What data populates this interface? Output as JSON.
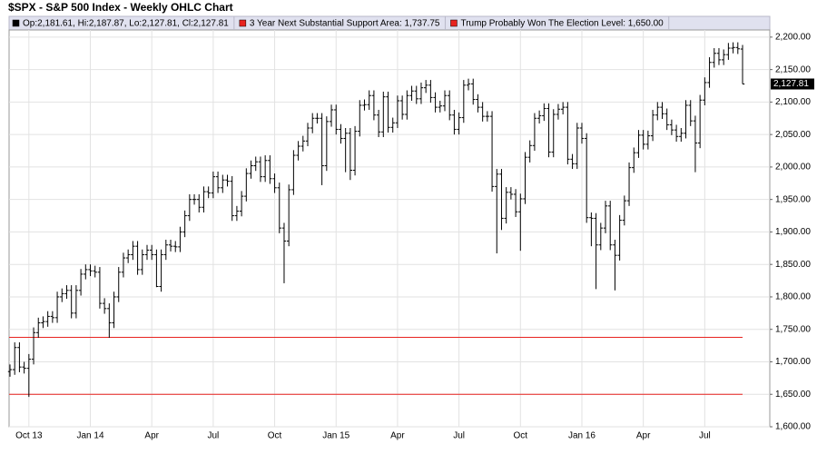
{
  "chart_data": {
    "type": "ohlc",
    "title": "$SPX - S&P 500 Index - Weekly OHLC Chart",
    "categories": [
      null,
      null,
      null,
      null,
      "Oct 13",
      null,
      null,
      null,
      null,
      null,
      null,
      null,
      null,
      null,
      null,
      null,
      null,
      "Jan 14",
      null,
      null,
      null,
      null,
      null,
      null,
      null,
      null,
      null,
      null,
      null,
      null,
      "Apr",
      null,
      null,
      null,
      null,
      null,
      null,
      null,
      null,
      null,
      null,
      null,
      null,
      "Jul",
      null,
      null,
      null,
      null,
      null,
      null,
      null,
      null,
      null,
      null,
      null,
      null,
      "Oct",
      null,
      null,
      null,
      null,
      null,
      null,
      null,
      null,
      null,
      null,
      null,
      null,
      "Jan 15",
      null,
      null,
      null,
      null,
      null,
      null,
      null,
      null,
      null,
      null,
      null,
      null,
      "Apr",
      null,
      null,
      null,
      null,
      null,
      null,
      null,
      null,
      null,
      null,
      null,
      null,
      "Jul",
      null,
      null,
      null,
      null,
      null,
      null,
      null,
      null,
      null,
      null,
      null,
      null,
      "Oct",
      null,
      null,
      null,
      null,
      null,
      null,
      null,
      null,
      null,
      null,
      null,
      null,
      "Jan 16",
      null,
      null,
      null,
      null,
      null,
      null,
      null,
      null,
      null,
      null,
      null,
      null,
      "Apr",
      null,
      null,
      null,
      null,
      null,
      null,
      null,
      null,
      null,
      null,
      null,
      null,
      "Jul",
      null,
      null,
      null,
      null,
      null,
      null,
      null,
      null
    ],
    "series": [
      {
        "name": "Op:2,181.61, Hi:2,187.87, Lo:2,127.81, Cl:2,127.81",
        "color": "#000000",
        "open": [
          1685,
          1688,
          1722,
          1692,
          1690,
          1704,
          1745,
          1760,
          1762,
          1770,
          1768,
          1800,
          1805,
          1810,
          1775,
          1810,
          1835,
          1842,
          1840,
          1838,
          1790,
          1782,
          1760,
          1800,
          1838,
          1860,
          1865,
          1878,
          1842,
          1865,
          1872,
          1865,
          1816,
          1865,
          1880,
          1878,
          1877,
          1900,
          1925,
          1950,
          1950,
          1938,
          1962,
          1960,
          1985,
          1968,
          1980,
          1978,
          1925,
          1932,
          1955,
          1990,
          2002,
          2008,
          1985,
          2010,
          1982,
          1968,
          1906,
          1886,
          1965,
          2018,
          2032,
          2040,
          2060,
          2075,
          2075,
          2002,
          2070,
          2088,
          2058,
          2044,
          2052,
          1995,
          2055,
          2095,
          2096,
          2110,
          2080,
          2054,
          2108,
          2061,
          2068,
          2102,
          2081,
          2110,
          2117,
          2105,
          2122,
          2126,
          2107,
          2092,
          2094,
          2110,
          2080,
          2058,
          2076,
          2126,
          2128,
          2104,
          2092,
          2078,
          2078,
          1970,
          1989,
          1921,
          1961,
          1958,
          1931,
          1951,
          2015,
          2033,
          2075,
          2079,
          2090,
          2023,
          2081,
          2089,
          2092,
          2012,
          2005,
          2060,
          2044,
          1922,
          1921,
          1880,
          1906,
          1940,
          1880,
          1864,
          1918,
          1948,
          1999,
          2022,
          2049,
          2035,
          2048,
          2080,
          2092,
          2082,
          2065,
          2057,
          2047,
          2052,
          2095,
          2071,
          2037,
          2103,
          2130,
          2161,
          2175,
          2165,
          2173,
          2183,
          2184,
          2181.61
        ],
        "high": [
          1696,
          1730,
          1730,
          1700,
          1712,
          1753,
          1768,
          1770,
          1778,
          1778,
          1808,
          1813,
          1818,
          1818,
          1818,
          1843,
          1850,
          1850,
          1848,
          1846,
          1798,
          1790,
          1808,
          1846,
          1868,
          1873,
          1886,
          1886,
          1873,
          1880,
          1880,
          1873,
          1873,
          1888,
          1888,
          1886,
          1908,
          1933,
          1958,
          1958,
          1958,
          1970,
          1970,
          1993,
          1993,
          1988,
          1988,
          1986,
          1940,
          1963,
          1998,
          2010,
          2016,
          2016,
          2018,
          2018,
          1990,
          1976,
          1914,
          1973,
          2026,
          2040,
          2048,
          2068,
          2083,
          2083,
          2083,
          2078,
          2096,
          2096,
          2066,
          2060,
          2060,
          2063,
          2103,
          2104,
          2118,
          2118,
          2088,
          2116,
          2116,
          2076,
          2110,
          2110,
          2118,
          2125,
          2125,
          2130,
          2134,
          2134,
          2115,
          2102,
          2118,
          2118,
          2088,
          2084,
          2134,
          2136,
          2136,
          2112,
          2100,
          2086,
          2086,
          1997,
          1997,
          1969,
          1969,
          1966,
          1959,
          2023,
          2041,
          2083,
          2087,
          2098,
          2098,
          2089,
          2097,
          2100,
          2100,
          2020,
          2068,
          2068,
          2052,
          1930,
          1929,
          1914,
          1948,
          1948,
          1888,
          1926,
          1956,
          2007,
          2030,
          2057,
          2057,
          2056,
          2088,
          2100,
          2100,
          2090,
          2073,
          2065,
          2060,
          2103,
          2103,
          2079,
          2111,
          2138,
          2169,
          2183,
          2183,
          2181,
          2191,
          2192,
          2192,
          2187.87
        ],
        "low": [
          1677,
          1680,
          1684,
          1682,
          1646,
          1696,
          1737,
          1752,
          1754,
          1760,
          1760,
          1792,
          1797,
          1767,
          1767,
          1802,
          1827,
          1832,
          1830,
          1782,
          1774,
          1737,
          1752,
          1792,
          1830,
          1852,
          1857,
          1834,
          1834,
          1857,
          1857,
          1815,
          1808,
          1857,
          1870,
          1869,
          1869,
          1892,
          1917,
          1942,
          1930,
          1930,
          1952,
          1952,
          1960,
          1960,
          1970,
          1917,
          1917,
          1924,
          1947,
          1982,
          1994,
          1977,
          1977,
          1974,
          1960,
          1898,
          1821,
          1878,
          1957,
          2010,
          2024,
          2032,
          2052,
          2067,
          1972,
          1994,
          2062,
          2050,
          2036,
          1992,
          1980,
          1987,
          2047,
          2087,
          2088,
          2072,
          2046,
          2046,
          2053,
          2053,
          2060,
          2073,
          2073,
          2102,
          2097,
          2097,
          2114,
          2099,
          2084,
          2084,
          2086,
          2072,
          2050,
          2050,
          2068,
          2118,
          2096,
          2084,
          2070,
          2070,
          1962,
          1867,
          1903,
          1913,
          1950,
          1923,
          1871,
          1943,
          2007,
          2025,
          2067,
          2071,
          2015,
          2015,
          2073,
          2081,
          2004,
          1997,
          1997,
          2036,
          1914,
          1878,
          1812,
          1872,
          1898,
          1872,
          1810,
          1856,
          1910,
          1940,
          1991,
          2014,
          2027,
          2027,
          2040,
          2072,
          2074,
          2057,
          2049,
          2039,
          2039,
          2044,
          2063,
          1992,
          2029,
          2095,
          2122,
          2153,
          2157,
          2157,
          2165,
          2175,
          2174,
          2127.81
        ],
        "close": [
          1688,
          1722,
          1692,
          1690,
          1704,
          1745,
          1760,
          1762,
          1770,
          1768,
          1800,
          1805,
          1810,
          1775,
          1810,
          1835,
          1842,
          1840,
          1838,
          1790,
          1782,
          1760,
          1800,
          1838,
          1860,
          1865,
          1878,
          1842,
          1865,
          1872,
          1865,
          1816,
          1865,
          1880,
          1878,
          1877,
          1900,
          1925,
          1950,
          1950,
          1938,
          1962,
          1960,
          1985,
          1968,
          1980,
          1978,
          1925,
          1932,
          1955,
          1990,
          2002,
          2008,
          1985,
          2010,
          1982,
          1968,
          1906,
          1886,
          1965,
          2018,
          2032,
          2040,
          2060,
          2075,
          2075,
          2002,
          2070,
          2088,
          2058,
          2044,
          2052,
          1995,
          2055,
          2095,
          2096,
          2110,
          2080,
          2054,
          2108,
          2061,
          2068,
          2102,
          2081,
          2110,
          2117,
          2105,
          2122,
          2126,
          2107,
          2092,
          2094,
          2110,
          2080,
          2058,
          2076,
          2126,
          2128,
          2104,
          2092,
          2078,
          2078,
          1970,
          1989,
          1921,
          1961,
          1958,
          1931,
          1951,
          2015,
          2033,
          2075,
          2079,
          2090,
          2023,
          2081,
          2089,
          2092,
          2012,
          2005,
          2060,
          2044,
          1922,
          1921,
          1880,
          1906,
          1940,
          1880,
          1864,
          1918,
          1948,
          1999,
          2022,
          2049,
          2035,
          2048,
          2080,
          2092,
          2082,
          2065,
          2057,
          2047,
          2052,
          2095,
          2071,
          2037,
          2103,
          2130,
          2161,
          2175,
          2165,
          2173,
          2183,
          2184,
          2182,
          2127.81
        ]
      }
    ],
    "lines": [
      {
        "name": "3 Year Next Substantial Support Area: 1,737.75",
        "value": 1737.75,
        "color": "#e8231f"
      },
      {
        "name": "Trump Probably Won The Election Level: 1,650.00",
        "value": 1650,
        "color": "#e8231f"
      }
    ],
    "last_price": {
      "value": 2127.81,
      "label": "2,127.81"
    },
    "ylim": [
      1600,
      2211
    ],
    "yticks": [
      {
        "value": 1600,
        "label": "1,600.00"
      },
      {
        "value": 1650,
        "label": "1,650.00"
      },
      {
        "value": 1700,
        "label": "1,700.00"
      },
      {
        "value": 1750,
        "label": "1,750.00"
      },
      {
        "value": 1800,
        "label": "1,800.00"
      },
      {
        "value": 1850,
        "label": "1,850.00"
      },
      {
        "value": 1900,
        "label": "1,900.00"
      },
      {
        "value": 1950,
        "label": "1,950.00"
      },
      {
        "value": 2000,
        "label": "2,000.00"
      },
      {
        "value": 2050,
        "label": "2,050.00"
      },
      {
        "value": 2100,
        "label": "2,100.00"
      },
      {
        "value": 2150,
        "label": "2,150.00"
      },
      {
        "value": 2200,
        "label": "2,200.00"
      }
    ],
    "grid": true
  }
}
